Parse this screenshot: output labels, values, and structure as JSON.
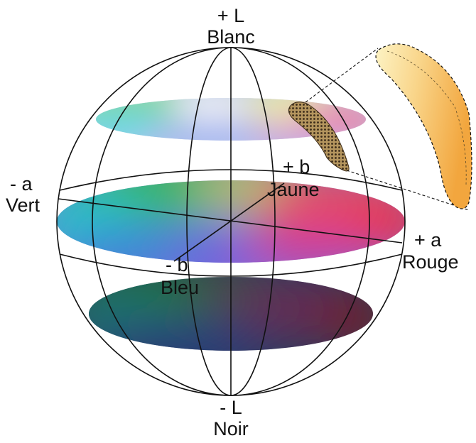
{
  "labels": {
    "l_plus": "+ L",
    "l_plus_name": "Blanc",
    "l_minus": "- L",
    "l_minus_name": "Noir",
    "a_minus": "- a",
    "a_minus_name": "Vert",
    "a_plus": "+ a",
    "a_plus_name": "Rouge",
    "b_plus": "+ b",
    "b_plus_name": "Jaune",
    "b_minus": "- b",
    "b_minus_name": "Bleu"
  },
  "colors": {
    "outline": "#111111",
    "green": "#3fbf4a",
    "cyan": "#2fc6d8",
    "blue": "#4a5fd0",
    "magenta": "#c8479e",
    "red": "#e8323c",
    "yellow": "#e9e64a",
    "sample_fill": "#f6c878",
    "sample_dots": "#3a2a18"
  }
}
